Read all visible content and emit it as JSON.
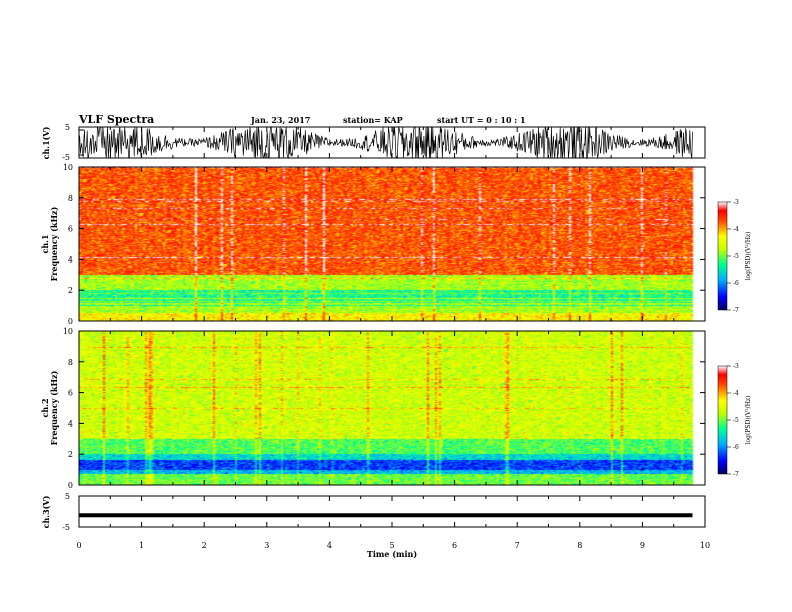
{
  "header": {
    "title": "VLF Spectra",
    "date": "Jan. 23, 2017",
    "station": "station= KAP",
    "start": "start  UT =   0 : 10 : 1"
  },
  "chart_data": [
    {
      "type": "line",
      "name": "ch1-waveform",
      "ylabel": "ch.1(V)",
      "ylim": [
        -5,
        5
      ],
      "yticks": [
        "5",
        "-5"
      ],
      "description_values": "noise waveform spanning roughly -5 to 5 V over 0-9.8 min"
    },
    {
      "type": "heatmap",
      "name": "ch1-spectrogram",
      "ylabel": "ch.1\nFrequency (kHz)",
      "xlim": [
        0,
        10
      ],
      "ylim": [
        0,
        10
      ],
      "yticks": [
        "0",
        "2",
        "4",
        "6",
        "8",
        "10"
      ],
      "bands": [
        {
          "from": 0.0,
          "to": 0.5,
          "level": -4.3
        },
        {
          "from": 0.5,
          "to": 1.0,
          "level": -4.8
        },
        {
          "from": 1.0,
          "to": 2.0,
          "level": -5.3
        },
        {
          "from": 2.0,
          "to": 3.0,
          "level": -4.8
        },
        {
          "from": 3.0,
          "to": 10.0,
          "level": -3.7
        }
      ],
      "data_end_min": 9.8
    },
    {
      "type": "heatmap",
      "name": "ch2-spectrogram",
      "ylabel": "ch.2\nFrequency (kHz)",
      "xlim": [
        0,
        10
      ],
      "ylim": [
        0,
        10
      ],
      "yticks": [
        "0",
        "2",
        "4",
        "6",
        "8",
        "10"
      ],
      "bands": [
        {
          "from": 0.0,
          "to": 0.7,
          "level": -5.0
        },
        {
          "from": 0.7,
          "to": 1.0,
          "level": -5.8
        },
        {
          "from": 1.0,
          "to": 1.6,
          "level": -6.3
        },
        {
          "from": 1.6,
          "to": 2.0,
          "level": -5.6
        },
        {
          "from": 2.0,
          "to": 3.0,
          "level": -5.1
        },
        {
          "from": 3.0,
          "to": 10.0,
          "level": -4.6
        }
      ],
      "data_end_min": 9.8
    },
    {
      "type": "line",
      "name": "ch3-waveform",
      "ylabel": "ch.3(V)",
      "ylim": [
        -5,
        5
      ],
      "yticks": [
        "5",
        "-5"
      ],
      "constant_value": -1.2,
      "xlabel": "Time (min)",
      "xlim": [
        0,
        10
      ],
      "xticks": [
        "0",
        "1",
        "2",
        "3",
        "4",
        "5",
        "6",
        "7",
        "8",
        "9",
        "10"
      ]
    }
  ],
  "colorbar": {
    "label": "log(PSD)(V²/Hz)",
    "range": [
      -7,
      -3
    ],
    "ticks": [
      "-3",
      "-4",
      "-5",
      "-6",
      "-7"
    ]
  }
}
